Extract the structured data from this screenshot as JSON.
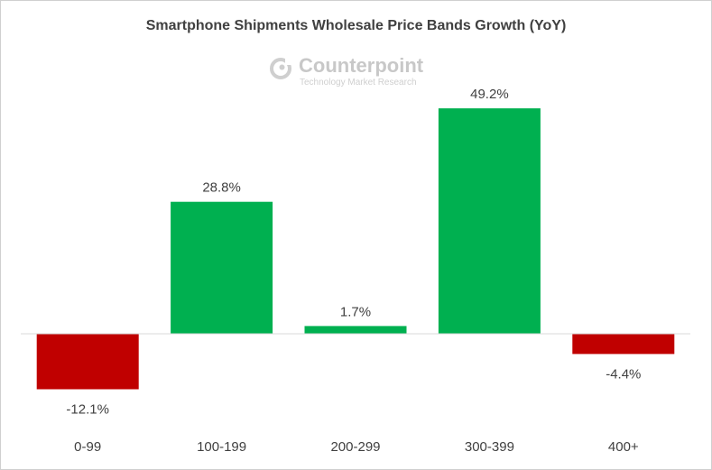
{
  "chart_data": {
    "type": "bar",
    "title": "Smartphone Shipments Wholesale Price Bands Growth (YoY)",
    "categories": [
      "0-99",
      "100-199",
      "200-299",
      "300-399",
      "400+"
    ],
    "values": [
      -12.1,
      28.8,
      1.7,
      49.2,
      -4.4
    ],
    "value_labels": [
      "-12.1%",
      "28.8%",
      "1.7%",
      "49.2%",
      "-4.4%"
    ],
    "xlabel": "",
    "ylabel": "",
    "grid": false,
    "legend": "none",
    "colors": {
      "positive": "#00b050",
      "negative": "#c00000"
    }
  },
  "watermark": {
    "name": "Counterpoint",
    "tagline": "Technology Market Research"
  }
}
